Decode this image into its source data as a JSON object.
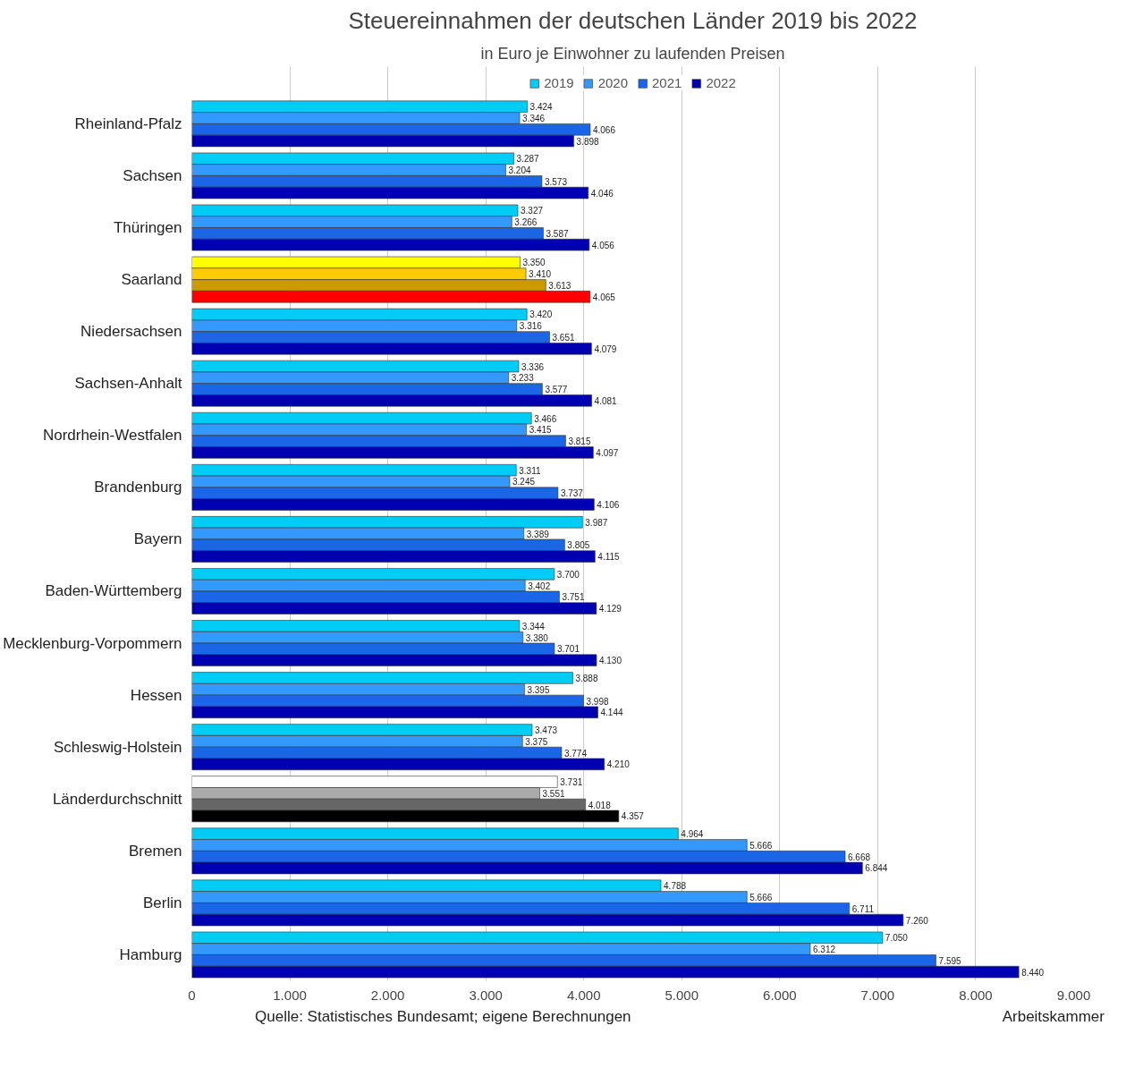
{
  "chart_data": {
    "type": "bar",
    "orientation": "horizontal",
    "title": "Steuereinnahmen der deutschen Länder 2019 bis 2022",
    "subtitle": "in Euro je Einwohner zu laufenden Preisen",
    "categories": [
      "Rheinland-Pfalz",
      "Sachsen",
      "Thüringen",
      "Saarland",
      "Niedersachsen",
      "Sachsen-Anhalt",
      "Nordrhein-Westfalen",
      "Brandenburg",
      "Bayern",
      "Baden-Württemberg",
      "Mecklenburg-Vorpommern",
      "Hessen",
      "Schleswig-Holstein",
      "Länderdurchschnitt",
      "Bremen",
      "Berlin",
      "Hamburg"
    ],
    "series": [
      {
        "name": "2019",
        "color": "#00ccf5",
        "colors": [
          null,
          null,
          null,
          "#ffff00",
          null,
          null,
          null,
          null,
          null,
          null,
          null,
          null,
          null,
          "#ffffff",
          null,
          null,
          null
        ],
        "values": [
          3424,
          3287,
          3327,
          3350,
          3420,
          3336,
          3466,
          3311,
          3987,
          3700,
          3344,
          3888,
          3473,
          3731,
          4964,
          4788,
          7050
        ],
        "value_labels": [
          "3.424",
          "3.287",
          "3.327",
          "3.350",
          "3.420",
          "3.336",
          "3.466",
          "3.311",
          "3.987",
          "3.700",
          "3.344",
          "3.888",
          "3.473",
          "3.731",
          "4.964",
          "4.788",
          "7.050"
        ]
      },
      {
        "name": "2020",
        "color": "#3399ff",
        "colors": [
          null,
          null,
          null,
          "#ffcc00",
          null,
          null,
          null,
          null,
          null,
          null,
          null,
          null,
          null,
          "#aaaaaa",
          null,
          null,
          null
        ],
        "values": [
          3346,
          3204,
          3266,
          3410,
          3316,
          3233,
          3415,
          3245,
          3389,
          3402,
          3380,
          3395,
          3375,
          3551,
          5666,
          5666,
          6312
        ],
        "value_labels": [
          "3.346",
          "3.204",
          "3.266",
          "3.410",
          "3.316",
          "3.233",
          "3.415",
          "3.245",
          "3.389",
          "3.402",
          "3.380",
          "3.395",
          "3.375",
          "3.551",
          "5.666",
          "5.666",
          "6.312"
        ]
      },
      {
        "name": "2021",
        "color": "#1a66e6",
        "colors": [
          null,
          null,
          null,
          "#cc9900",
          null,
          null,
          null,
          null,
          null,
          null,
          null,
          null,
          null,
          "#666666",
          null,
          null,
          null
        ],
        "values": [
          4066,
          3573,
          3587,
          3613,
          3651,
          3577,
          3815,
          3737,
          3805,
          3751,
          3701,
          3998,
          3774,
          4018,
          6668,
          6711,
          7595
        ],
        "value_labels": [
          "4.066",
          "3.573",
          "3.587",
          "3.613",
          "3.651",
          "3.577",
          "3.815",
          "3.737",
          "3.805",
          "3.751",
          "3.701",
          "3.998",
          "3.774",
          "4.018",
          "6.668",
          "6.711",
          "7.595"
        ]
      },
      {
        "name": "2022",
        "color": "#0000b3",
        "colors": [
          null,
          null,
          null,
          "#ff0000",
          null,
          null,
          null,
          null,
          null,
          null,
          null,
          null,
          null,
          "#000000",
          null,
          null,
          null
        ],
        "values": [
          3898,
          4046,
          4056,
          4065,
          4079,
          4081,
          4097,
          4106,
          4115,
          4129,
          4130,
          4144,
          4210,
          4357,
          6844,
          7260,
          8440
        ],
        "value_labels": [
          "3.898",
          "4.046",
          "4.056",
          "4.065",
          "4.079",
          "4.081",
          "4.097",
          "4.106",
          "4.115",
          "4.129",
          "4.130",
          "4.144",
          "4.210",
          "4.357",
          "6.844",
          "7.260",
          "8.440"
        ]
      }
    ],
    "xlim": [
      0,
      9000
    ],
    "xticks": [
      0,
      {
        "value": 1000,
        "label": "1.000"
      },
      {
        "value": 2000,
        "label": "2.000"
      },
      {
        "value": 3000,
        "label": "3.000"
      },
      {
        "value": 4000,
        "label": "4.000"
      },
      {
        "value": 5000,
        "label": "5.000"
      },
      {
        "value": 6000,
        "label": "6.000"
      },
      {
        "value": 7000,
        "label": "7.000"
      },
      {
        "value": 8000,
        "label": "8.000"
      },
      {
        "value": 9000,
        "label": "9.000"
      }
    ],
    "grid": "x",
    "legend": "top",
    "annotations": [
      "Quelle: Statistisches Bundesamt; eigene Berechnungen",
      "Arbeitskammer"
    ]
  }
}
